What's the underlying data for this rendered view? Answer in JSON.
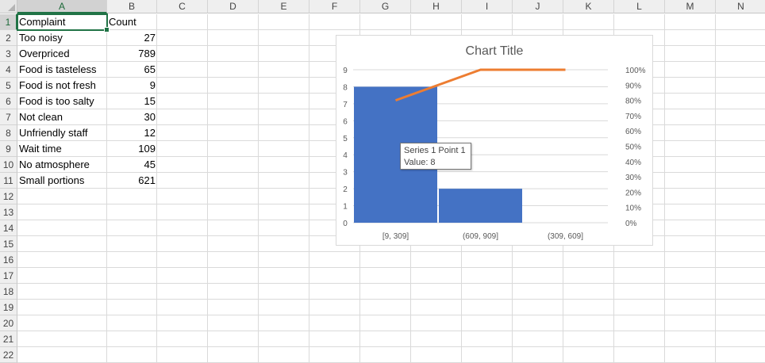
{
  "columns": [
    "A",
    "B",
    "C",
    "D",
    "E",
    "F",
    "G",
    "H",
    "I",
    "J",
    "K",
    "L",
    "M",
    "N"
  ],
  "rows": [
    "1",
    "2",
    "3",
    "4",
    "5",
    "6",
    "7",
    "8",
    "9",
    "10",
    "11",
    "12",
    "13",
    "14",
    "15",
    "16",
    "17",
    "18",
    "19",
    "20",
    "21",
    "22"
  ],
  "table": {
    "headers": [
      "Complaint",
      "Count"
    ],
    "rows": [
      [
        "Too noisy",
        "27"
      ],
      [
        "Overpriced",
        "789"
      ],
      [
        "Food is tasteless",
        "65"
      ],
      [
        "Food is not fresh",
        "9"
      ],
      [
        "Food is too salty",
        "15"
      ],
      [
        "Not clean",
        "30"
      ],
      [
        "Unfriendly staff",
        "12"
      ],
      [
        "Wait time",
        "109"
      ],
      [
        "No atmosphere",
        "45"
      ],
      [
        "Small portions",
        "621"
      ]
    ]
  },
  "colors": {
    "bar": "#4472c4",
    "line": "#ed7d31",
    "gridline": "#d9d9d9",
    "axis_text": "#595959",
    "selection": "#217346"
  },
  "chart_data": {
    "type": "bar",
    "title": "Chart Title",
    "categories": [
      "[9, 309]",
      "(609, 909]",
      "(309, 609]"
    ],
    "series": [
      {
        "values": [
          8,
          2,
          0
        ]
      },
      {
        "type": "line",
        "axis": "secondary",
        "values": [
          0.8,
          1.0,
          1.0
        ]
      }
    ],
    "y_ticks": [
      "0",
      "1",
      "2",
      "3",
      "4",
      "5",
      "6",
      "7",
      "8",
      "9"
    ],
    "y_secondary_ticks": [
      "0%",
      "10%",
      "20%",
      "30%",
      "40%",
      "50%",
      "60%",
      "70%",
      "80%",
      "90%",
      "100%"
    ],
    "ylim": [
      0,
      9
    ],
    "y2lim": [
      0,
      1
    ],
    "grid": true,
    "legend": "none"
  },
  "tooltip": {
    "line1": "Series 1 Point 1",
    "line2": "Value: 8"
  }
}
